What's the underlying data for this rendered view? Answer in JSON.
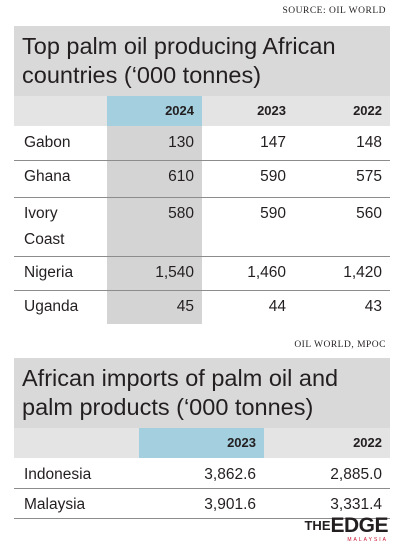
{
  "source_top": "SOURCE: OIL WORLD",
  "source_bottom": "OIL WORLD, MPOC",
  "logo": {
    "the": "THE",
    "edge": "EDGE",
    "sub": "MALAYSIA"
  },
  "colors": {
    "title_bg": "#d9d9d9",
    "highlight_header": "#a3cfdf",
    "shaded_column": "#d4d4d4",
    "logo_accent": "#c8102e"
  },
  "chart_data": [
    {
      "type": "table",
      "title": "Top palm oil producing African countries (‘000 tonnes)",
      "columns": [
        "2024",
        "2023",
        "2022"
      ],
      "highlighted_column": "2024",
      "rows": [
        {
          "name": "Gabon",
          "values": [
            "130",
            "147",
            "148"
          ]
        },
        {
          "name": "Ghana",
          "values": [
            "610",
            "590",
            "575"
          ]
        },
        {
          "name": "Ivory Coast",
          "values": [
            "580",
            "590",
            "560"
          ]
        },
        {
          "name": "Nigeria",
          "values": [
            "1,540",
            "1,460",
            "1,420"
          ]
        },
        {
          "name": "Uganda",
          "values": [
            "45",
            "44",
            "43"
          ]
        }
      ]
    },
    {
      "type": "table",
      "title": "African imports of palm oil and palm products (‘000 tonnes)",
      "columns": [
        "2023",
        "2022"
      ],
      "highlighted_column": "2023",
      "rows": [
        {
          "name": "Indonesia",
          "values": [
            "3,862.6",
            "2,885.0"
          ]
        },
        {
          "name": "Malaysia",
          "values": [
            "3,901.6",
            "3,331.4"
          ]
        }
      ]
    }
  ]
}
